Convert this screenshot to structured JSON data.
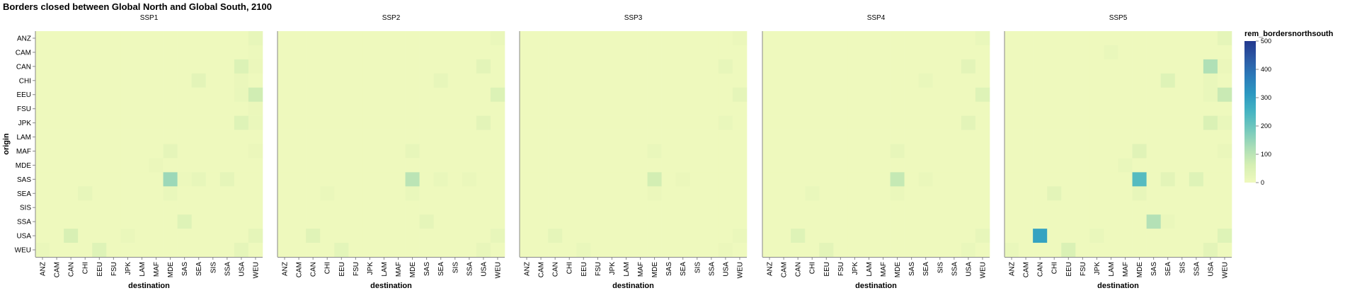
{
  "chart_data": {
    "type": "heatmap",
    "title": "Borders closed between Global North and Global South, 2100",
    "xlabel": "destination",
    "ylabel": "origin",
    "facets": [
      "SSP1",
      "SSP2",
      "SSP3",
      "SSP4",
      "SSP5"
    ],
    "regions": [
      "ANZ",
      "CAM",
      "CAN",
      "CHI",
      "EEU",
      "FSU",
      "JPK",
      "LAM",
      "MAF",
      "MDE",
      "SAS",
      "SEA",
      "SIS",
      "SSA",
      "USA",
      "WEU"
    ],
    "legend": {
      "title": "rem_bordersnorthsouth",
      "domain": [
        0,
        500
      ],
      "ticks": [
        0,
        100,
        200,
        300,
        400,
        500
      ],
      "colors": [
        "#eff9bd",
        "#d5efb3",
        "#a9ddb7",
        "#74c9bd",
        "#46b4c2",
        "#2c99c1",
        "#2b7bb9",
        "#2c5aa5",
        "#23388e"
      ],
      "placement": "right"
    },
    "default_value": 3,
    "values": {
      "SSP1": [
        [
          "ANZ",
          "WEU",
          20
        ],
        [
          "CAM",
          "WEU",
          8
        ],
        [
          "CAN",
          "USA",
          45
        ],
        [
          "CAN",
          "WEU",
          10
        ],
        [
          "CHI",
          "SEA",
          30
        ],
        [
          "CHI",
          "USA",
          12
        ],
        [
          "EEU",
          "WEU",
          70
        ],
        [
          "EEU",
          "USA",
          15
        ],
        [
          "FSU",
          "WEU",
          10
        ],
        [
          "JPK",
          "USA",
          40
        ],
        [
          "JPK",
          "WEU",
          12
        ],
        [
          "MAF",
          "MDE",
          25
        ],
        [
          "MAF",
          "WEU",
          10
        ],
        [
          "MDE",
          "MAF",
          10
        ],
        [
          "SAS",
          "MDE",
          140
        ],
        [
          "SAS",
          "SEA",
          20
        ],
        [
          "SAS",
          "SSA",
          25
        ],
        [
          "SAS",
          "SAS",
          8
        ],
        [
          "SEA",
          "CHI",
          20
        ],
        [
          "SEA",
          "MDE",
          15
        ],
        [
          "SSA",
          "SAS",
          40
        ],
        [
          "USA",
          "CAN",
          55
        ],
        [
          "USA",
          "WEU",
          25
        ],
        [
          "USA",
          "JPK",
          12
        ],
        [
          "WEU",
          "EEU",
          40
        ],
        [
          "WEU",
          "USA",
          25
        ],
        [
          "WEU",
          "ANZ",
          12
        ]
      ],
      "SSP2": [
        [
          "ANZ",
          "WEU",
          12
        ],
        [
          "CAN",
          "USA",
          30
        ],
        [
          "CHI",
          "SEA",
          20
        ],
        [
          "EEU",
          "WEU",
          45
        ],
        [
          "JPK",
          "USA",
          30
        ],
        [
          "MAF",
          "MDE",
          20
        ],
        [
          "SAS",
          "MDE",
          100
        ],
        [
          "SAS",
          "SEA",
          15
        ],
        [
          "SAS",
          "SSA",
          12
        ],
        [
          "SEA",
          "CHI",
          12
        ],
        [
          "SEA",
          "MDE",
          15
        ],
        [
          "SSA",
          "SAS",
          25
        ],
        [
          "USA",
          "CAN",
          35
        ],
        [
          "USA",
          "WEU",
          20
        ],
        [
          "WEU",
          "EEU",
          28
        ],
        [
          "WEU",
          "USA",
          18
        ]
      ],
      "SSP3": [
        [
          "ANZ",
          "WEU",
          10
        ],
        [
          "CAN",
          "USA",
          20
        ],
        [
          "EEU",
          "WEU",
          25
        ],
        [
          "JPK",
          "USA",
          15
        ],
        [
          "MAF",
          "MDE",
          15
        ],
        [
          "SAS",
          "MDE",
          65
        ],
        [
          "SAS",
          "SEA",
          10
        ],
        [
          "SEA",
          "MDE",
          10
        ],
        [
          "USA",
          "CAN",
          25
        ],
        [
          "USA",
          "WEU",
          12
        ],
        [
          "WEU",
          "EEU",
          15
        ],
        [
          "WEU",
          "USA",
          10
        ]
      ],
      "SSP4": [
        [
          "ANZ",
          "WEU",
          15
        ],
        [
          "CAN",
          "USA",
          30
        ],
        [
          "CHI",
          "SEA",
          15
        ],
        [
          "EEU",
          "WEU",
          40
        ],
        [
          "JPK",
          "USA",
          30
        ],
        [
          "MAF",
          "MDE",
          20
        ],
        [
          "SAS",
          "MDE",
          85
        ],
        [
          "SAS",
          "SEA",
          12
        ],
        [
          "SEA",
          "CHI",
          15
        ],
        [
          "SEA",
          "MDE",
          12
        ],
        [
          "USA",
          "CAN",
          40
        ],
        [
          "USA",
          "WEU",
          20
        ],
        [
          "WEU",
          "EEU",
          30
        ],
        [
          "WEU",
          "USA",
          15
        ]
      ],
      "SSP5": [
        [
          "ANZ",
          "WEU",
          25
        ],
        [
          "CAM",
          "LAM",
          15
        ],
        [
          "CAN",
          "USA",
          115
        ],
        [
          "CAN",
          "WEU",
          10
        ],
        [
          "CHI",
          "SEA",
          40
        ],
        [
          "CHI",
          "USA",
          15
        ],
        [
          "EEU",
          "WEU",
          80
        ],
        [
          "EEU",
          "USA",
          15
        ],
        [
          "JPK",
          "USA",
          50
        ],
        [
          "JPK",
          "WEU",
          15
        ],
        [
          "MAF",
          "MDE",
          35
        ],
        [
          "MAF",
          "WEU",
          12
        ],
        [
          "MDE",
          "MAF",
          15
        ],
        [
          "SAS",
          "MDE",
          230
        ],
        [
          "SAS",
          "SEA",
          30
        ],
        [
          "SAS",
          "SSA",
          40
        ],
        [
          "SEA",
          "CHI",
          30
        ],
        [
          "SEA",
          "MDE",
          20
        ],
        [
          "SSA",
          "SAS",
          110
        ],
        [
          "SSA",
          "SEA",
          12
        ],
        [
          "USA",
          "CAN",
          290
        ],
        [
          "USA",
          "WEU",
          40
        ],
        [
          "USA",
          "JPK",
          15
        ],
        [
          "WEU",
          "EEU",
          50
        ],
        [
          "WEU",
          "USA",
          30
        ],
        [
          "WEU",
          "ANZ",
          15
        ]
      ]
    }
  }
}
